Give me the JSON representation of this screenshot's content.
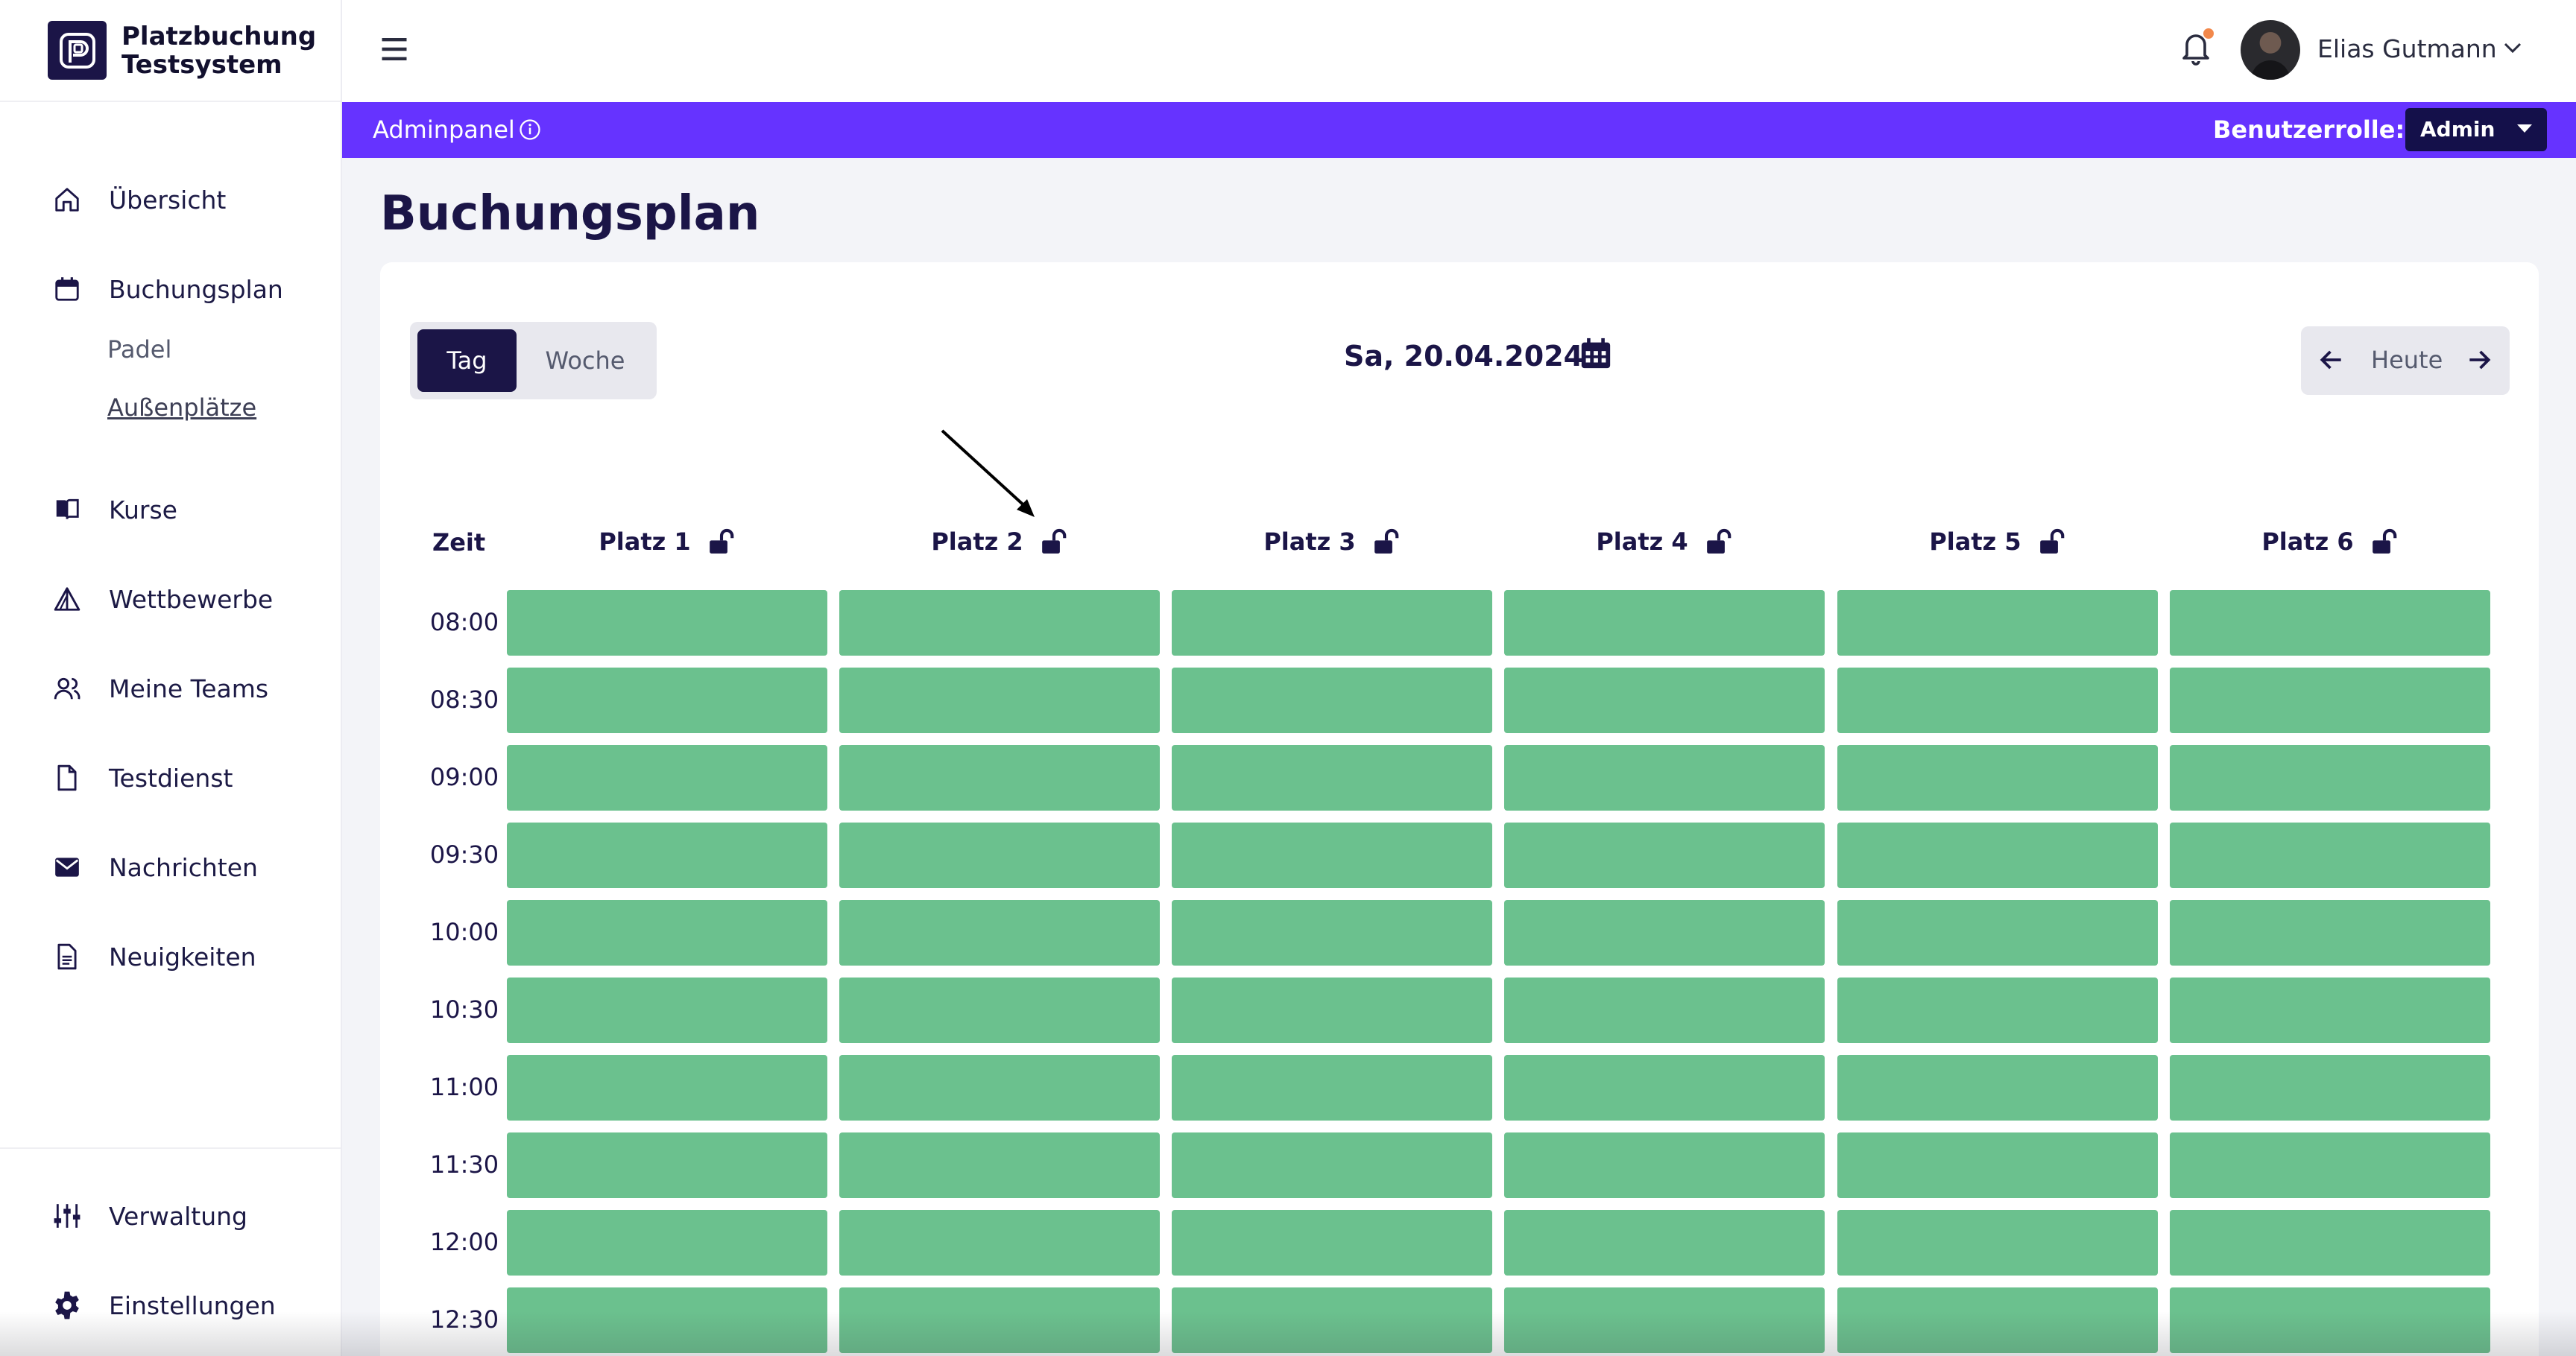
{
  "brand": {
    "line1": "Platzbuchung",
    "line2": "Testsystem"
  },
  "sidebar": {
    "items": [
      {
        "label": "Übersicht",
        "icon": "home-icon"
      },
      {
        "label": "Buchungsplan",
        "icon": "calendar-icon"
      },
      {
        "label": "Kurse",
        "icon": "book-icon"
      },
      {
        "label": "Wettbewerbe",
        "icon": "triangle-icon"
      },
      {
        "label": "Meine Teams",
        "icon": "users-icon"
      },
      {
        "label": "Testdienst",
        "icon": "file-icon"
      },
      {
        "label": "Nachrichten",
        "icon": "mail-icon"
      },
      {
        "label": "Neuigkeiten",
        "icon": "document-icon"
      }
    ],
    "subitems": [
      {
        "label": "Padel",
        "active": false
      },
      {
        "label": "Außenplätze",
        "active": true
      }
    ],
    "bottom": [
      {
        "label": "Verwaltung",
        "icon": "sliders-icon"
      },
      {
        "label": "Einstellungen",
        "icon": "gear-icon"
      }
    ]
  },
  "topbar": {
    "user_name": "Elias Gutmann",
    "notification_dot_color": "#f2884b"
  },
  "adminbar": {
    "label": "Adminpanel",
    "role_label": "Benutzerrolle:",
    "role_value": "Admin",
    "color": "#6633ff"
  },
  "main": {
    "title": "Buchungsplan",
    "view_toggle": {
      "day": "Tag",
      "week": "Woche",
      "selected": "Tag"
    },
    "date": "Sa, 20.04.2024",
    "today_label": "Heute"
  },
  "schedule": {
    "time_header": "Zeit",
    "courts": [
      "Platz 1",
      "Platz 2",
      "Platz 3",
      "Platz 4",
      "Platz 5",
      "Platz 6"
    ],
    "times": [
      "08:00",
      "08:30",
      "09:00",
      "09:30",
      "10:00",
      "10:30",
      "11:00",
      "11:30",
      "12:00",
      "12:30"
    ],
    "slot_status": "available",
    "slot_color": "#6bc18e"
  }
}
